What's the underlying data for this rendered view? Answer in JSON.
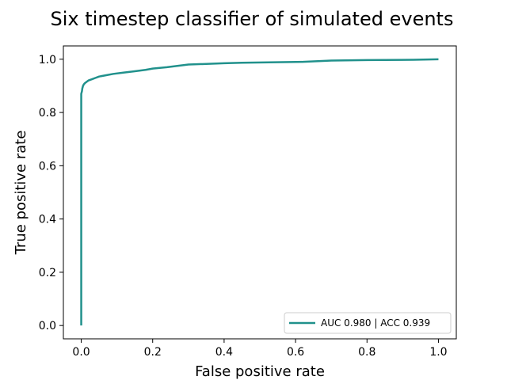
{
  "chart_data": {
    "type": "line",
    "title": "Six timestep classifier of simulated events",
    "xlabel": "False positive rate",
    "ylabel": "True positive rate",
    "xlim": [
      -0.05,
      1.05
    ],
    "ylim": [
      -0.05,
      1.05
    ],
    "xticks": [
      0.0,
      0.2,
      0.4,
      0.6,
      0.8,
      1.0
    ],
    "yticks": [
      0.0,
      0.2,
      0.4,
      0.6,
      0.8,
      1.0
    ],
    "xtick_labels": [
      "0.0",
      "0.2",
      "0.4",
      "0.6",
      "0.8",
      "1.0"
    ],
    "ytick_labels": [
      "0.0",
      "0.2",
      "0.4",
      "0.6",
      "0.8",
      "1.0"
    ],
    "grid": false,
    "legend_position": "lower-right",
    "series": [
      {
        "name": "AUC 0.980 | ACC 0.939",
        "color": "#21918c",
        "x": [
          0.0,
          0.0,
          0.0,
          0.002,
          0.003,
          0.005,
          0.007,
          0.01,
          0.015,
          0.02,
          0.03,
          0.04,
          0.05,
          0.07,
          0.09,
          0.12,
          0.15,
          0.18,
          0.2,
          0.24,
          0.3,
          0.4,
          0.45,
          0.62,
          0.7,
          0.8,
          0.93,
          1.0
        ],
        "y": [
          0.0,
          0.85,
          0.87,
          0.88,
          0.89,
          0.9,
          0.905,
          0.91,
          0.915,
          0.92,
          0.925,
          0.93,
          0.935,
          0.94,
          0.945,
          0.95,
          0.955,
          0.96,
          0.965,
          0.97,
          0.98,
          0.985,
          0.987,
          0.99,
          0.995,
          0.997,
          0.998,
          1.0
        ]
      }
    ]
  }
}
